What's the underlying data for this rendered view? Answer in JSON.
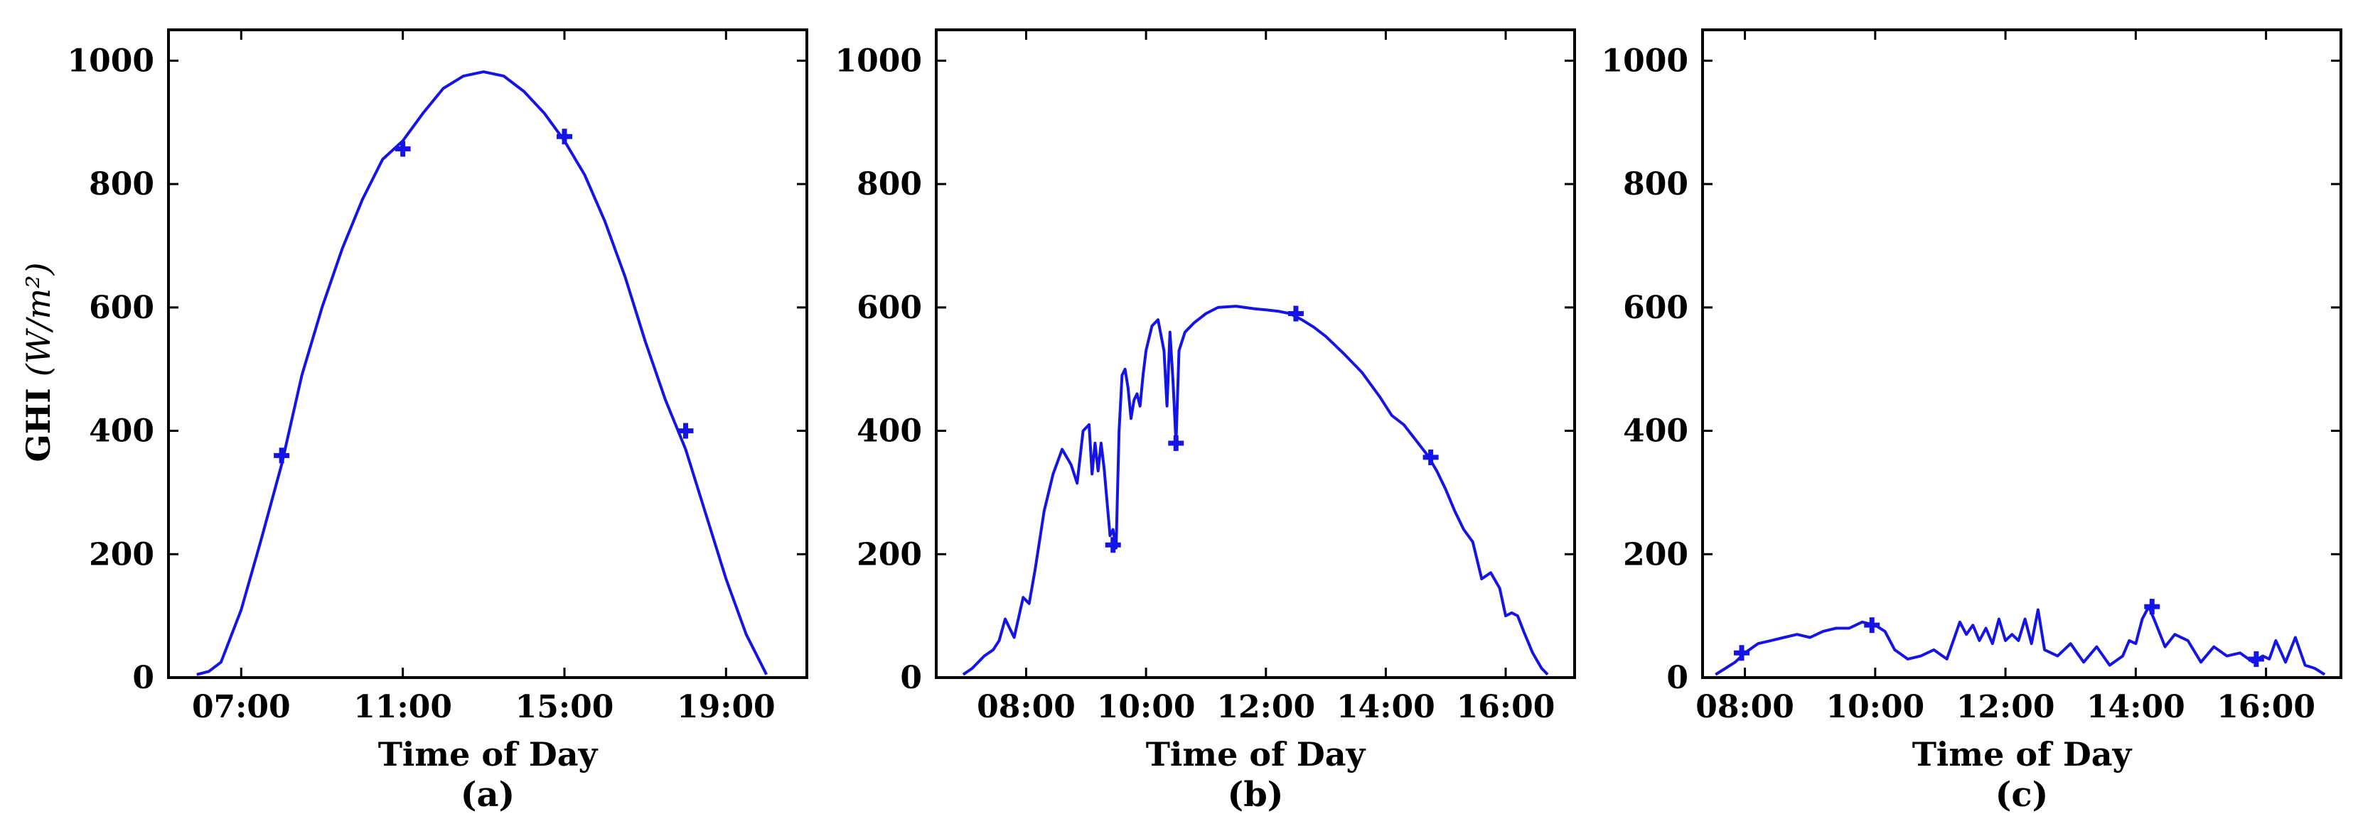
{
  "figure": {
    "ylabel": "GHI",
    "ylabel_units": "(W/m²)",
    "line_color": "#1414e6"
  },
  "chart_data": [
    {
      "type": "line",
      "panel": "(a)",
      "xlabel": "Time of Day",
      "ylabel": "GHI (W/m²)",
      "xlim": [
        5.2,
        21.0
      ],
      "ylim": [
        0,
        1050
      ],
      "xticks": [
        7,
        11,
        15,
        19
      ],
      "xtick_labels": [
        "07:00",
        "11:00",
        "15:00",
        "19:00"
      ],
      "yticks": [
        0,
        200,
        400,
        600,
        800,
        1000
      ],
      "ytick_labels": [
        "0",
        "200",
        "400",
        "600",
        "800",
        "1000"
      ],
      "series": [
        {
          "name": "GHI",
          "x": [
            5.9,
            6.2,
            6.5,
            7.0,
            7.5,
            8.0,
            8.5,
            9.0,
            9.5,
            10.0,
            10.5,
            11.0,
            11.5,
            12.0,
            12.5,
            13.0,
            13.5,
            14.0,
            14.5,
            15.0,
            15.5,
            16.0,
            16.5,
            17.0,
            17.5,
            18.0,
            18.5,
            19.0,
            19.5,
            20.0
          ],
          "y": [
            5,
            10,
            25,
            110,
            225,
            345,
            490,
            600,
            695,
            775,
            840,
            870,
            915,
            955,
            975,
            982,
            975,
            950,
            915,
            870,
            815,
            740,
            650,
            545,
            450,
            370,
            265,
            160,
            70,
            5
          ]
        }
      ],
      "markers": {
        "x": [
          8.0,
          11.0,
          15.0,
          18.0
        ],
        "y": [
          360,
          857,
          877,
          400
        ]
      }
    },
    {
      "type": "line",
      "panel": "(b)",
      "xlabel": "Time of Day",
      "ylabel": "",
      "xlim": [
        6.5,
        17.15
      ],
      "ylim": [
        0,
        1050
      ],
      "xticks": [
        8,
        10,
        12,
        14,
        16
      ],
      "xtick_labels": [
        "08:00",
        "10:00",
        "12:00",
        "14:00",
        "16:00"
      ],
      "yticks": [
        0,
        200,
        400,
        600,
        800,
        1000
      ],
      "ytick_labels": [
        "0",
        "200",
        "400",
        "600",
        "800",
        "1000"
      ],
      "series": [
        {
          "name": "GHI",
          "x": [
            6.95,
            7.1,
            7.3,
            7.45,
            7.55,
            7.65,
            7.8,
            7.95,
            8.05,
            8.15,
            8.3,
            8.45,
            8.6,
            8.75,
            8.85,
            8.95,
            9.05,
            9.1,
            9.15,
            9.2,
            9.25,
            9.3,
            9.35,
            9.4,
            9.45,
            9.5,
            9.55,
            9.6,
            9.65,
            9.7,
            9.75,
            9.8,
            9.85,
            9.9,
            9.95,
            10.0,
            10.1,
            10.2,
            10.3,
            10.35,
            10.4,
            10.45,
            10.5,
            10.55,
            10.6,
            10.65,
            10.7,
            10.8,
            11.0,
            11.2,
            11.5,
            11.8,
            12.0,
            12.2,
            12.4,
            12.6,
            12.8,
            13.0,
            13.3,
            13.6,
            13.9,
            14.1,
            14.3,
            14.5,
            14.7,
            14.85,
            15.0,
            15.15,
            15.3,
            15.45,
            15.6,
            15.75,
            15.9,
            16.0,
            16.1,
            16.2,
            16.3,
            16.45,
            16.6,
            16.7
          ],
          "y": [
            5,
            15,
            35,
            45,
            60,
            95,
            65,
            130,
            120,
            175,
            270,
            330,
            370,
            345,
            315,
            400,
            410,
            330,
            380,
            335,
            380,
            340,
            285,
            230,
            240,
            210,
            400,
            490,
            500,
            470,
            420,
            450,
            460,
            440,
            490,
            530,
            570,
            580,
            530,
            440,
            560,
            480,
            380,
            530,
            545,
            560,
            565,
            575,
            590,
            600,
            602,
            598,
            596,
            594,
            590,
            580,
            568,
            553,
            525,
            495,
            455,
            425,
            410,
            385,
            360,
            335,
            305,
            270,
            240,
            220,
            160,
            170,
            145,
            100,
            105,
            100,
            75,
            40,
            15,
            5
          ]
        }
      ],
      "markers": {
        "x": [
          9.45,
          10.5,
          12.5,
          14.75
        ],
        "y": [
          215,
          380,
          590,
          357
        ]
      }
    },
    {
      "type": "line",
      "panel": "(c)",
      "xlabel": "Time of Day",
      "ylabel": "",
      "xlim": [
        7.35,
        17.15
      ],
      "ylim": [
        0,
        1050
      ],
      "xticks": [
        8,
        10,
        12,
        14,
        16
      ],
      "xtick_labels": [
        "08:00",
        "10:00",
        "12:00",
        "14:00",
        "16:00"
      ],
      "yticks": [
        0,
        200,
        400,
        600,
        800,
        1000
      ],
      "ytick_labels": [
        "0",
        "200",
        "400",
        "600",
        "800",
        "1000"
      ],
      "series": [
        {
          "name": "GHI",
          "x": [
            7.55,
            7.7,
            7.85,
            8.0,
            8.2,
            8.4,
            8.6,
            8.8,
            9.0,
            9.2,
            9.4,
            9.6,
            9.8,
            10.0,
            10.15,
            10.3,
            10.5,
            10.7,
            10.9,
            11.1,
            11.2,
            11.3,
            11.4,
            11.5,
            11.6,
            11.7,
            11.8,
            11.9,
            12.0,
            12.1,
            12.2,
            12.3,
            12.4,
            12.5,
            12.6,
            12.8,
            13.0,
            13.2,
            13.4,
            13.6,
            13.8,
            13.9,
            14.0,
            14.1,
            14.2,
            14.3,
            14.45,
            14.6,
            14.8,
            15.0,
            15.2,
            15.4,
            15.6,
            15.8,
            15.95,
            16.05,
            16.15,
            16.3,
            16.45,
            16.6,
            16.75,
            16.9
          ],
          "y": [
            5,
            15,
            25,
            40,
            55,
            60,
            65,
            70,
            65,
            75,
            80,
            80,
            90,
            85,
            75,
            45,
            30,
            35,
            45,
            30,
            60,
            90,
            70,
            85,
            60,
            80,
            55,
            95,
            60,
            70,
            60,
            95,
            55,
            110,
            45,
            35,
            55,
            25,
            50,
            20,
            35,
            60,
            55,
            95,
            115,
            90,
            50,
            70,
            60,
            25,
            50,
            35,
            40,
            25,
            35,
            30,
            60,
            25,
            65,
            20,
            15,
            5
          ]
        }
      ],
      "markers": {
        "x": [
          7.95,
          9.95,
          14.25,
          15.85
        ],
        "y": [
          40,
          85,
          115,
          30
        ]
      }
    }
  ]
}
